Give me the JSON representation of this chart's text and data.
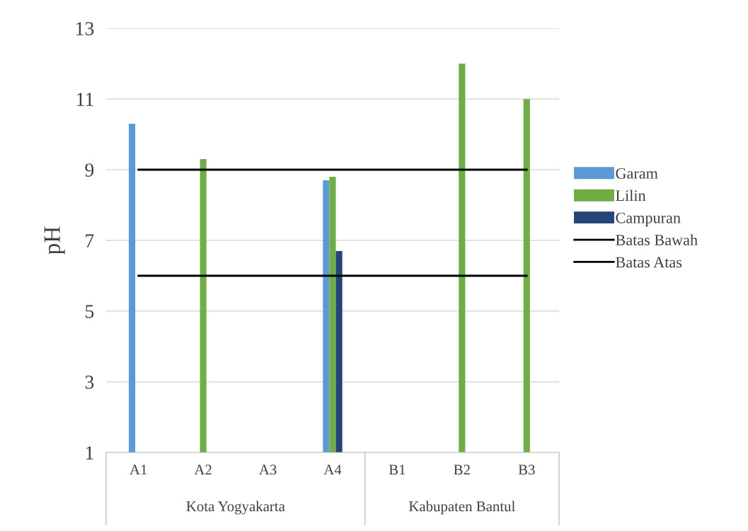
{
  "chart_data": {
    "type": "bar",
    "ylabel": "pH",
    "categories": [
      "A1",
      "A2",
      "A3",
      "A4",
      "B1",
      "B2",
      "B3"
    ],
    "series": [
      {
        "name": "Garam",
        "color": "#5b9bd5",
        "values": [
          10.3,
          null,
          null,
          8.7,
          null,
          null,
          null
        ]
      },
      {
        "name": "Lilin",
        "color": "#70ad47",
        "values": [
          null,
          9.3,
          null,
          8.8,
          null,
          12,
          11
        ]
      },
      {
        "name": "Campuran",
        "color": "#264478",
        "values": [
          null,
          null,
          null,
          6.7,
          null,
          null,
          null
        ]
      },
      {
        "name": "Batas Bawah",
        "type": "line",
        "color": "#000000",
        "values": [
          9,
          9,
          9,
          9,
          9,
          9,
          9
        ]
      },
      {
        "name": "Batas Atas",
        "type": "line",
        "color": "#000000",
        "values": [
          6,
          6,
          6,
          6,
          6,
          6,
          6
        ]
      }
    ],
    "annotations": [
      "Kota Yogyakarta",
      "Kabupaten Bantul"
    ],
    "ylim": [
      1,
      13
    ],
    "yticks": [
      1,
      3,
      5,
      7,
      9,
      11,
      13
    ],
    "grid": "y",
    "legend": "right"
  }
}
